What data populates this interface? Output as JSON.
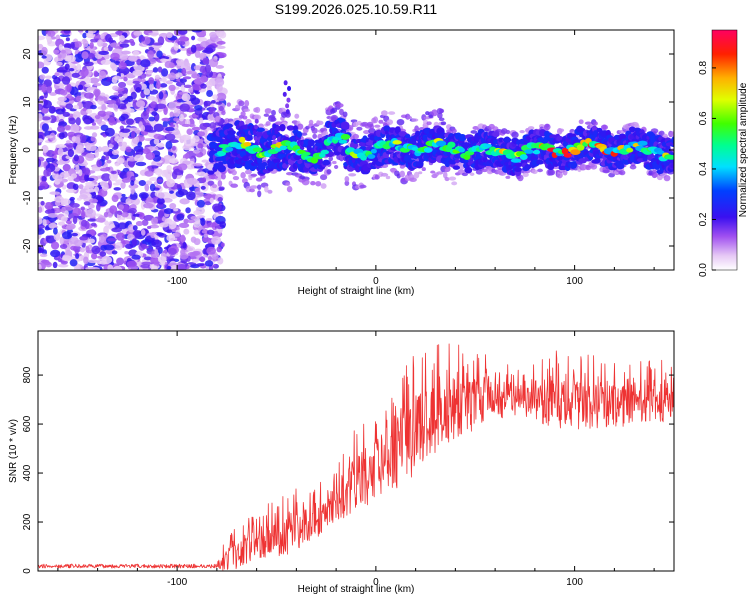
{
  "title": "S199.2026.025.10.59.R11",
  "colors": {
    "line": "#ee3333",
    "axis": "#000000",
    "background": "#ffffff"
  },
  "chart_data": [
    {
      "type": "heatmap",
      "name": "spectrogram",
      "xlabel": "Height of straight line (km)",
      "ylabel": "Frequency (Hz)",
      "xlim": [
        -170,
        150
      ],
      "ylim": [
        -25,
        25
      ],
      "xticks": [
        -100,
        0,
        100
      ],
      "yticks": [
        -20,
        -10,
        0,
        10,
        20
      ],
      "ytick_labels": [
        "-20",
        "-10",
        "0",
        "10",
        "20"
      ],
      "xtick_labels": [
        "-100",
        "0",
        "100"
      ],
      "colorbar": {
        "label": "Normalized spectral amplitude",
        "range": [
          0,
          0.95
        ],
        "ticks": [
          0,
          0.2,
          0.4,
          0.6,
          0.8
        ],
        "tick_labels": [
          "0.0",
          "0.2",
          "0.4",
          "0.6",
          "0.8"
        ],
        "colormap": "rainbow (white-violet-blue-cyan-green-yellow-red)"
      },
      "features": {
        "noise_region_x": [
          -170,
          -85
        ],
        "signal_start_x": -83,
        "ridge_freq_hz": 0,
        "transient_at_x_-20_freq": 3,
        "strongest_amplitude_x": [
          80,
          120
        ]
      }
    },
    {
      "type": "line",
      "name": "snr",
      "xlabel": "Height of straight line (km)",
      "ylabel": "SNR (10 * v/v)",
      "xlim": [
        -170,
        150
      ],
      "ylim": [
        0,
        980
      ],
      "xticks": [
        -100,
        0,
        100
      ],
      "yticks": [
        0,
        200,
        400,
        600,
        800
      ],
      "xtick_labels": [
        "-100",
        "0",
        "100"
      ],
      "ytick_labels": [
        "0",
        "200",
        "400",
        "600",
        "800"
      ],
      "series": [
        {
          "name": "SNR",
          "envelope_x": [
            -170,
            -80,
            -75,
            -60,
            -45,
            -30,
            -20,
            -10,
            0,
            10,
            20,
            30,
            40,
            50,
            60,
            75,
            90,
            110,
            130,
            150
          ],
          "mean_y": [
            20,
            20,
            40,
            110,
            150,
            200,
            270,
            350,
            420,
            480,
            550,
            620,
            660,
            680,
            700,
            690,
            680,
            670,
            680,
            690
          ],
          "peak_y": [
            30,
            30,
            150,
            240,
            340,
            350,
            420,
            620,
            690,
            800,
            900,
            940,
            960,
            900,
            880,
            820,
            900,
            880,
            870,
            860
          ]
        }
      ]
    }
  ]
}
